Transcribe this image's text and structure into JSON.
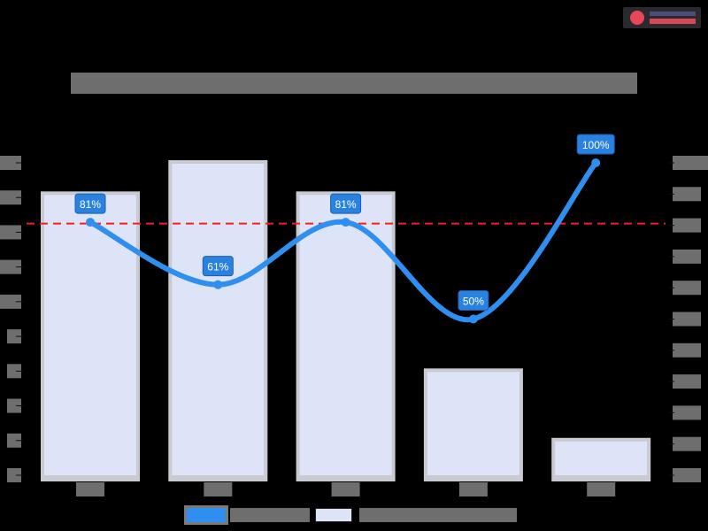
{
  "logo": {
    "name": "logo-badge"
  },
  "chart_data": {
    "type": "bar",
    "title": "",
    "xlabel": "",
    "ylabel": "",
    "y2label": "",
    "categories": [
      "",
      "",
      "",
      "",
      ""
    ],
    "series": [
      {
        "name": "",
        "type": "bar",
        "axis": "left",
        "values": [
          8.1,
          9,
          8.1,
          3,
          1
        ],
        "color": "#dde4f7",
        "border": "#b8bcc8"
      },
      {
        "name": "",
        "type": "line",
        "axis": "right",
        "smooth": true,
        "values": [
          81,
          61,
          81,
          50,
          100
        ],
        "labels": [
          "81%",
          "61%",
          "81%",
          "50%",
          "100%"
        ],
        "color": "#2f8ff0"
      }
    ],
    "reference_line": {
      "axis": "right",
      "value": 80,
      "color": "#ff1a1a",
      "style": "dashed"
    },
    "ylim": [
      0,
      9
    ],
    "y2lim": [
      0,
      100
    ],
    "y2ticks": [
      0,
      10,
      20,
      30,
      40,
      50,
      60,
      70,
      80,
      90,
      100
    ],
    "grid": false,
    "legend_position": "bottom"
  },
  "legend": {
    "items": [
      {
        "label": "",
        "color": "#2f8ff0",
        "kind": "line"
      },
      {
        "label": "",
        "color": "#dde4f7",
        "kind": "bar"
      }
    ]
  }
}
